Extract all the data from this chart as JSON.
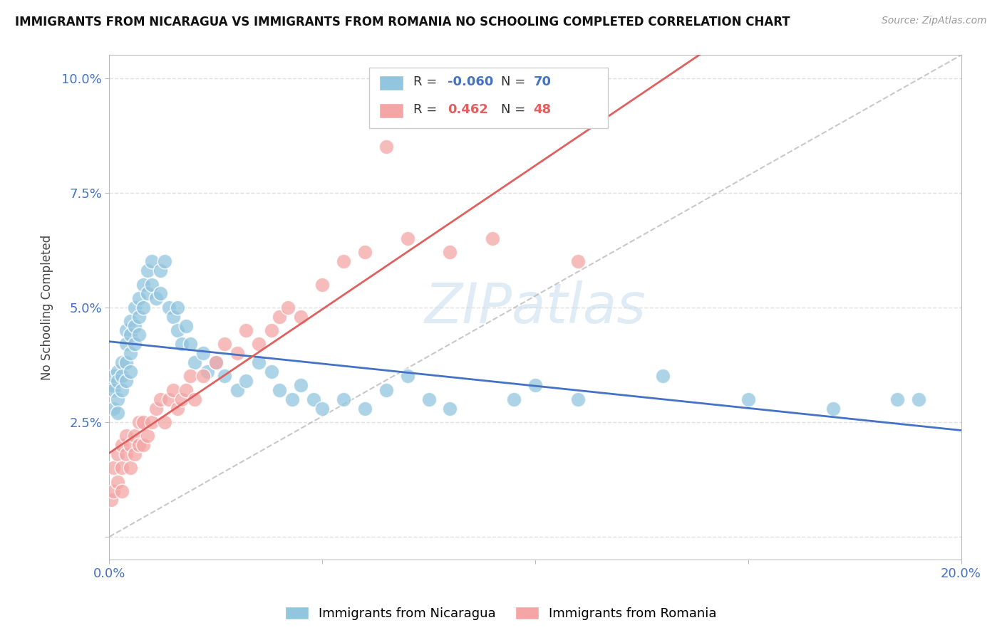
{
  "title": "IMMIGRANTS FROM NICARAGUA VS IMMIGRANTS FROM ROMANIA NO SCHOOLING COMPLETED CORRELATION CHART",
  "source": "Source: ZipAtlas.com",
  "ylabel": "No Schooling Completed",
  "xlim": [
    0.0,
    0.2
  ],
  "ylim": [
    -0.005,
    0.105
  ],
  "nicaragua_color": "#92c5de",
  "romania_color": "#f4a5a5",
  "nicaragua_line_color": "#4472c4",
  "romania_line_color": "#e06060",
  "nicaragua_R": -0.06,
  "nicaragua_N": 70,
  "romania_R": 0.462,
  "romania_N": 48,
  "watermark": "ZIPatlas",
  "background_color": "#ffffff",
  "grid_color": "#e0e0e0",
  "tick_color": "#4472c4",
  "axis_color": "#bbbbbb",
  "nic_x": [
    0.0005,
    0.001,
    0.001,
    0.001,
    0.002,
    0.002,
    0.002,
    0.002,
    0.003,
    0.003,
    0.003,
    0.004,
    0.004,
    0.004,
    0.004,
    0.005,
    0.005,
    0.005,
    0.005,
    0.006,
    0.006,
    0.006,
    0.007,
    0.007,
    0.007,
    0.008,
    0.008,
    0.009,
    0.009,
    0.01,
    0.01,
    0.011,
    0.012,
    0.012,
    0.013,
    0.014,
    0.015,
    0.016,
    0.016,
    0.017,
    0.018,
    0.019,
    0.02,
    0.022,
    0.023,
    0.025,
    0.027,
    0.03,
    0.032,
    0.035,
    0.038,
    0.04,
    0.043,
    0.045,
    0.048,
    0.05,
    0.055,
    0.06,
    0.065,
    0.07,
    0.075,
    0.08,
    0.095,
    0.1,
    0.11,
    0.13,
    0.15,
    0.17,
    0.185,
    0.19
  ],
  "nic_y": [
    0.033,
    0.035,
    0.032,
    0.028,
    0.036,
    0.034,
    0.03,
    0.027,
    0.038,
    0.035,
    0.032,
    0.045,
    0.042,
    0.038,
    0.034,
    0.047,
    0.044,
    0.04,
    0.036,
    0.05,
    0.046,
    0.042,
    0.052,
    0.048,
    0.044,
    0.055,
    0.05,
    0.058,
    0.053,
    0.06,
    0.055,
    0.052,
    0.058,
    0.053,
    0.06,
    0.05,
    0.048,
    0.05,
    0.045,
    0.042,
    0.046,
    0.042,
    0.038,
    0.04,
    0.036,
    0.038,
    0.035,
    0.032,
    0.034,
    0.038,
    0.036,
    0.032,
    0.03,
    0.033,
    0.03,
    0.028,
    0.03,
    0.028,
    0.032,
    0.035,
    0.03,
    0.028,
    0.03,
    0.033,
    0.03,
    0.035,
    0.03,
    0.028,
    0.03,
    0.03
  ],
  "rom_x": [
    0.0005,
    0.001,
    0.001,
    0.002,
    0.002,
    0.003,
    0.003,
    0.003,
    0.004,
    0.004,
    0.005,
    0.005,
    0.006,
    0.006,
    0.007,
    0.007,
    0.008,
    0.008,
    0.009,
    0.01,
    0.011,
    0.012,
    0.013,
    0.014,
    0.015,
    0.016,
    0.017,
    0.018,
    0.019,
    0.02,
    0.022,
    0.025,
    0.027,
    0.03,
    0.032,
    0.035,
    0.038,
    0.04,
    0.042,
    0.045,
    0.05,
    0.055,
    0.06,
    0.065,
    0.07,
    0.08,
    0.09,
    0.11
  ],
  "rom_y": [
    0.008,
    0.01,
    0.015,
    0.012,
    0.018,
    0.015,
    0.02,
    0.01,
    0.018,
    0.022,
    0.02,
    0.015,
    0.022,
    0.018,
    0.025,
    0.02,
    0.025,
    0.02,
    0.022,
    0.025,
    0.028,
    0.03,
    0.025,
    0.03,
    0.032,
    0.028,
    0.03,
    0.032,
    0.035,
    0.03,
    0.035,
    0.038,
    0.042,
    0.04,
    0.045,
    0.042,
    0.045,
    0.048,
    0.05,
    0.048,
    0.055,
    0.06,
    0.062,
    0.085,
    0.065,
    0.062,
    0.065,
    0.06
  ]
}
